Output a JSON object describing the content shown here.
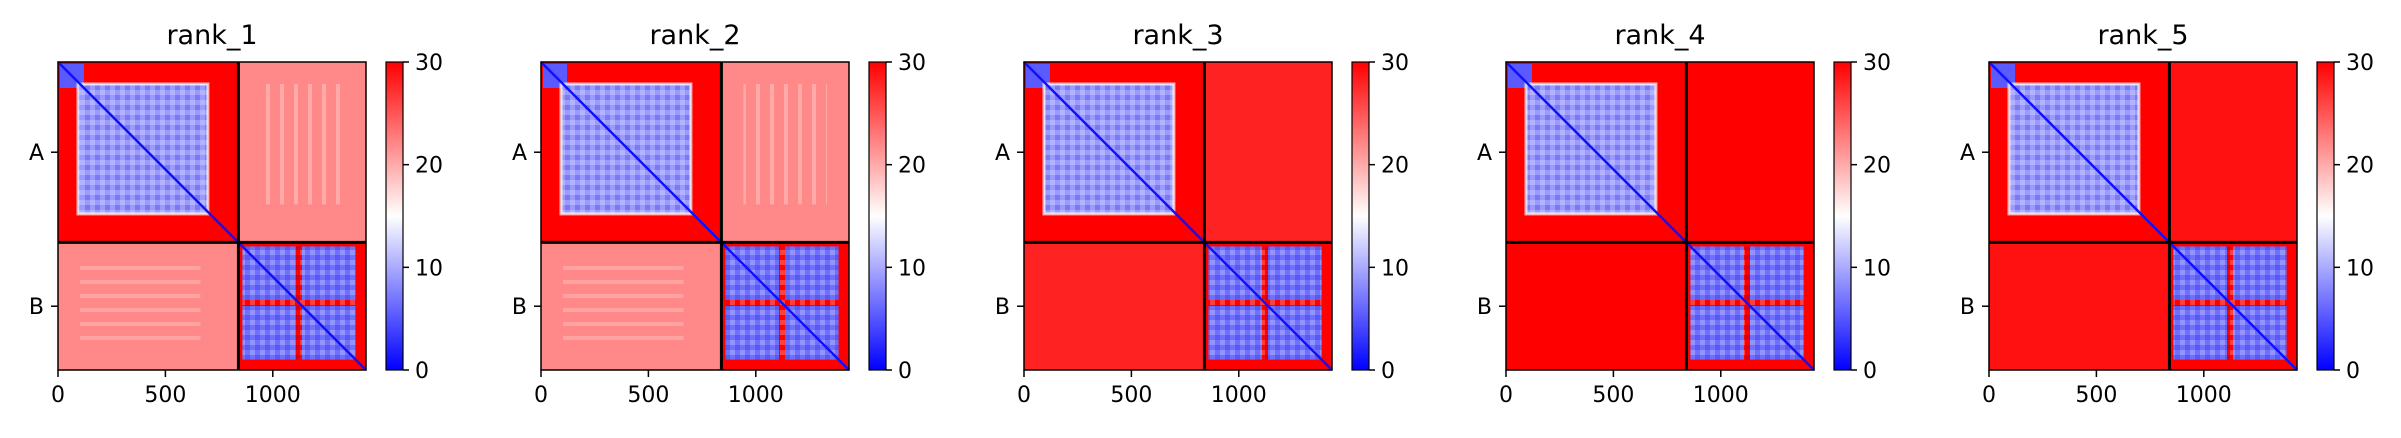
{
  "figure": {
    "colormap": "bwr",
    "colors": {
      "low": "#0000ff",
      "mid": "#ffffff",
      "high": "#ff0000",
      "divider": "#000000"
    }
  },
  "chart_data": [
    {
      "type": "heatmap",
      "title": "rank_1",
      "x_ticks": [
        0,
        500,
        1000
      ],
      "xlim": [
        0,
        1434
      ],
      "y_tick_labels": [
        "A",
        "B"
      ],
      "chains": [
        {
          "name": "A",
          "start": 0,
          "end": 840
        },
        {
          "name": "B",
          "start": 840,
          "end": 1434
        }
      ],
      "colorbar": {
        "ticks": [
          0,
          10,
          20,
          30
        ],
        "range": [
          0,
          30
        ]
      },
      "inter_chain_mean_value": 22
    },
    {
      "type": "heatmap",
      "title": "rank_2",
      "x_ticks": [
        0,
        500,
        1000
      ],
      "xlim": [
        0,
        1434
      ],
      "y_tick_labels": [
        "A",
        "B"
      ],
      "chains": [
        {
          "name": "A",
          "start": 0,
          "end": 840
        },
        {
          "name": "B",
          "start": 840,
          "end": 1434
        }
      ],
      "colorbar": {
        "ticks": [
          0,
          10,
          20,
          30
        ],
        "range": [
          0,
          30
        ]
      },
      "inter_chain_mean_value": 22
    },
    {
      "type": "heatmap",
      "title": "rank_3",
      "x_ticks": [
        0,
        500,
        1000
      ],
      "xlim": [
        0,
        1434
      ],
      "y_tick_labels": [
        "A",
        "B"
      ],
      "chains": [
        {
          "name": "A",
          "start": 0,
          "end": 840
        },
        {
          "name": "B",
          "start": 840,
          "end": 1434
        }
      ],
      "colorbar": {
        "ticks": [
          0,
          10,
          20,
          30
        ],
        "range": [
          0,
          30
        ]
      },
      "inter_chain_mean_value": 28
    },
    {
      "type": "heatmap",
      "title": "rank_4",
      "x_ticks": [
        0,
        500,
        1000
      ],
      "xlim": [
        0,
        1434
      ],
      "y_tick_labels": [
        "A",
        "B"
      ],
      "chains": [
        {
          "name": "A",
          "start": 0,
          "end": 840
        },
        {
          "name": "B",
          "start": 840,
          "end": 1434
        }
      ],
      "colorbar": {
        "ticks": [
          0,
          10,
          20,
          30
        ],
        "range": [
          0,
          30
        ]
      },
      "inter_chain_mean_value": 30
    },
    {
      "type": "heatmap",
      "title": "rank_5",
      "x_ticks": [
        0,
        500,
        1000
      ],
      "xlim": [
        0,
        1434
      ],
      "y_tick_labels": [
        "A",
        "B"
      ],
      "chains": [
        {
          "name": "A",
          "start": 0,
          "end": 840
        },
        {
          "name": "B",
          "start": 840,
          "end": 1434
        }
      ],
      "colorbar": {
        "ticks": [
          0,
          10,
          20,
          30
        ],
        "range": [
          0,
          30
        ]
      },
      "inter_chain_mean_value": 29
    }
  ]
}
